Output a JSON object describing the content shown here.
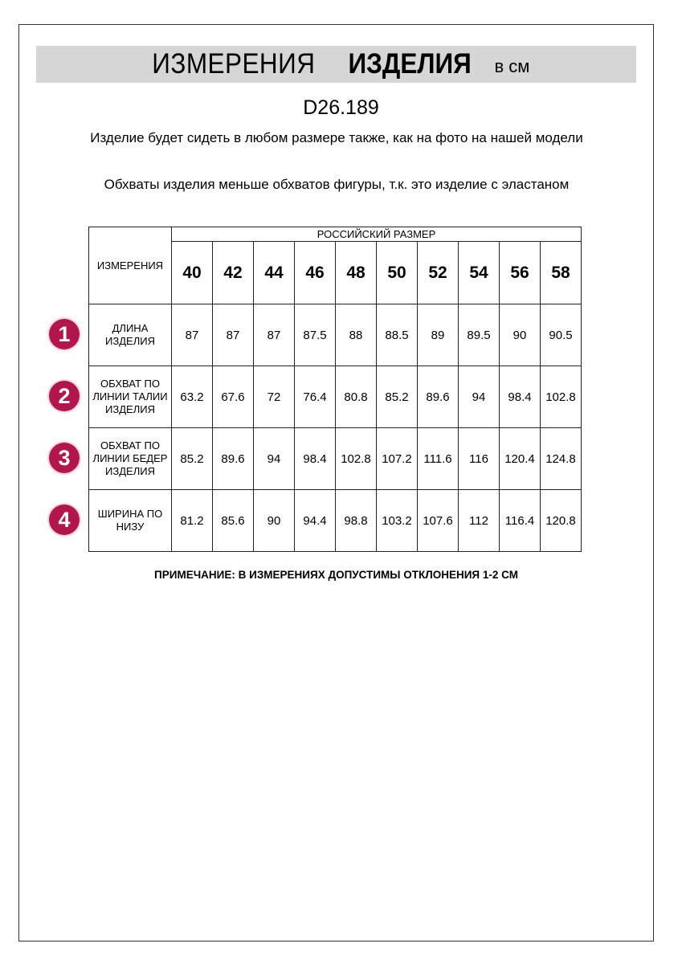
{
  "header": {
    "title_regular": "ИЗМЕРЕНИЯ",
    "title_bold": "ИЗДЕЛИЯ",
    "unit": "в см"
  },
  "product_code": "D26.189",
  "notes": [
    "Изделие будет сидеть в любом размере также, как на фото на нашей модели",
    "Обхваты изделия меньше обхватов фигуры, т.к. это изделие с эластаном"
  ],
  "table": {
    "measurements_header": "ИЗМЕРЕНИЯ",
    "size_group_header": "РОССИЙСКИЙ РАЗМЕР",
    "sizes": [
      "40",
      "42",
      "44",
      "46",
      "48",
      "50",
      "52",
      "54",
      "56",
      "58"
    ],
    "rows": [
      {
        "number": "1",
        "label": "ДЛИНА ИЗДЕЛИЯ",
        "values": [
          "87",
          "87",
          "87",
          "87.5",
          "88",
          "88.5",
          "89",
          "89.5",
          "90",
          "90.5"
        ]
      },
      {
        "number": "2",
        "label": "ОБХВАТ ПО ЛИНИИ ТАЛИИ ИЗДЕЛИЯ",
        "values": [
          "63.2",
          "67.6",
          "72",
          "76.4",
          "80.8",
          "85.2",
          "89.6",
          "94",
          "98.4",
          "102.8"
        ]
      },
      {
        "number": "3",
        "label": "ОБХВАТ ПО ЛИНИИ БЕДЕР ИЗДЕЛИЯ",
        "values": [
          "85.2",
          "89.6",
          "94",
          "98.4",
          "102.8",
          "107.2",
          "111.6",
          "116",
          "120.4",
          "124.8"
        ]
      },
      {
        "number": "4",
        "label": "ШИРИНА ПО НИЗУ",
        "values": [
          "81.2",
          "85.6",
          "90",
          "94.4",
          "98.8",
          "103.2",
          "107.6",
          "112",
          "116.4",
          "120.8"
        ]
      }
    ]
  },
  "footnote": "ПРИМЕЧАНИЕ: В ИЗМЕРЕНИЯХ ДОПУСТИМЫ ОТКЛОНЕНИЯ 1-2 СМ",
  "colors": {
    "accent": "#b3164d",
    "band": "#d6d6d6"
  }
}
